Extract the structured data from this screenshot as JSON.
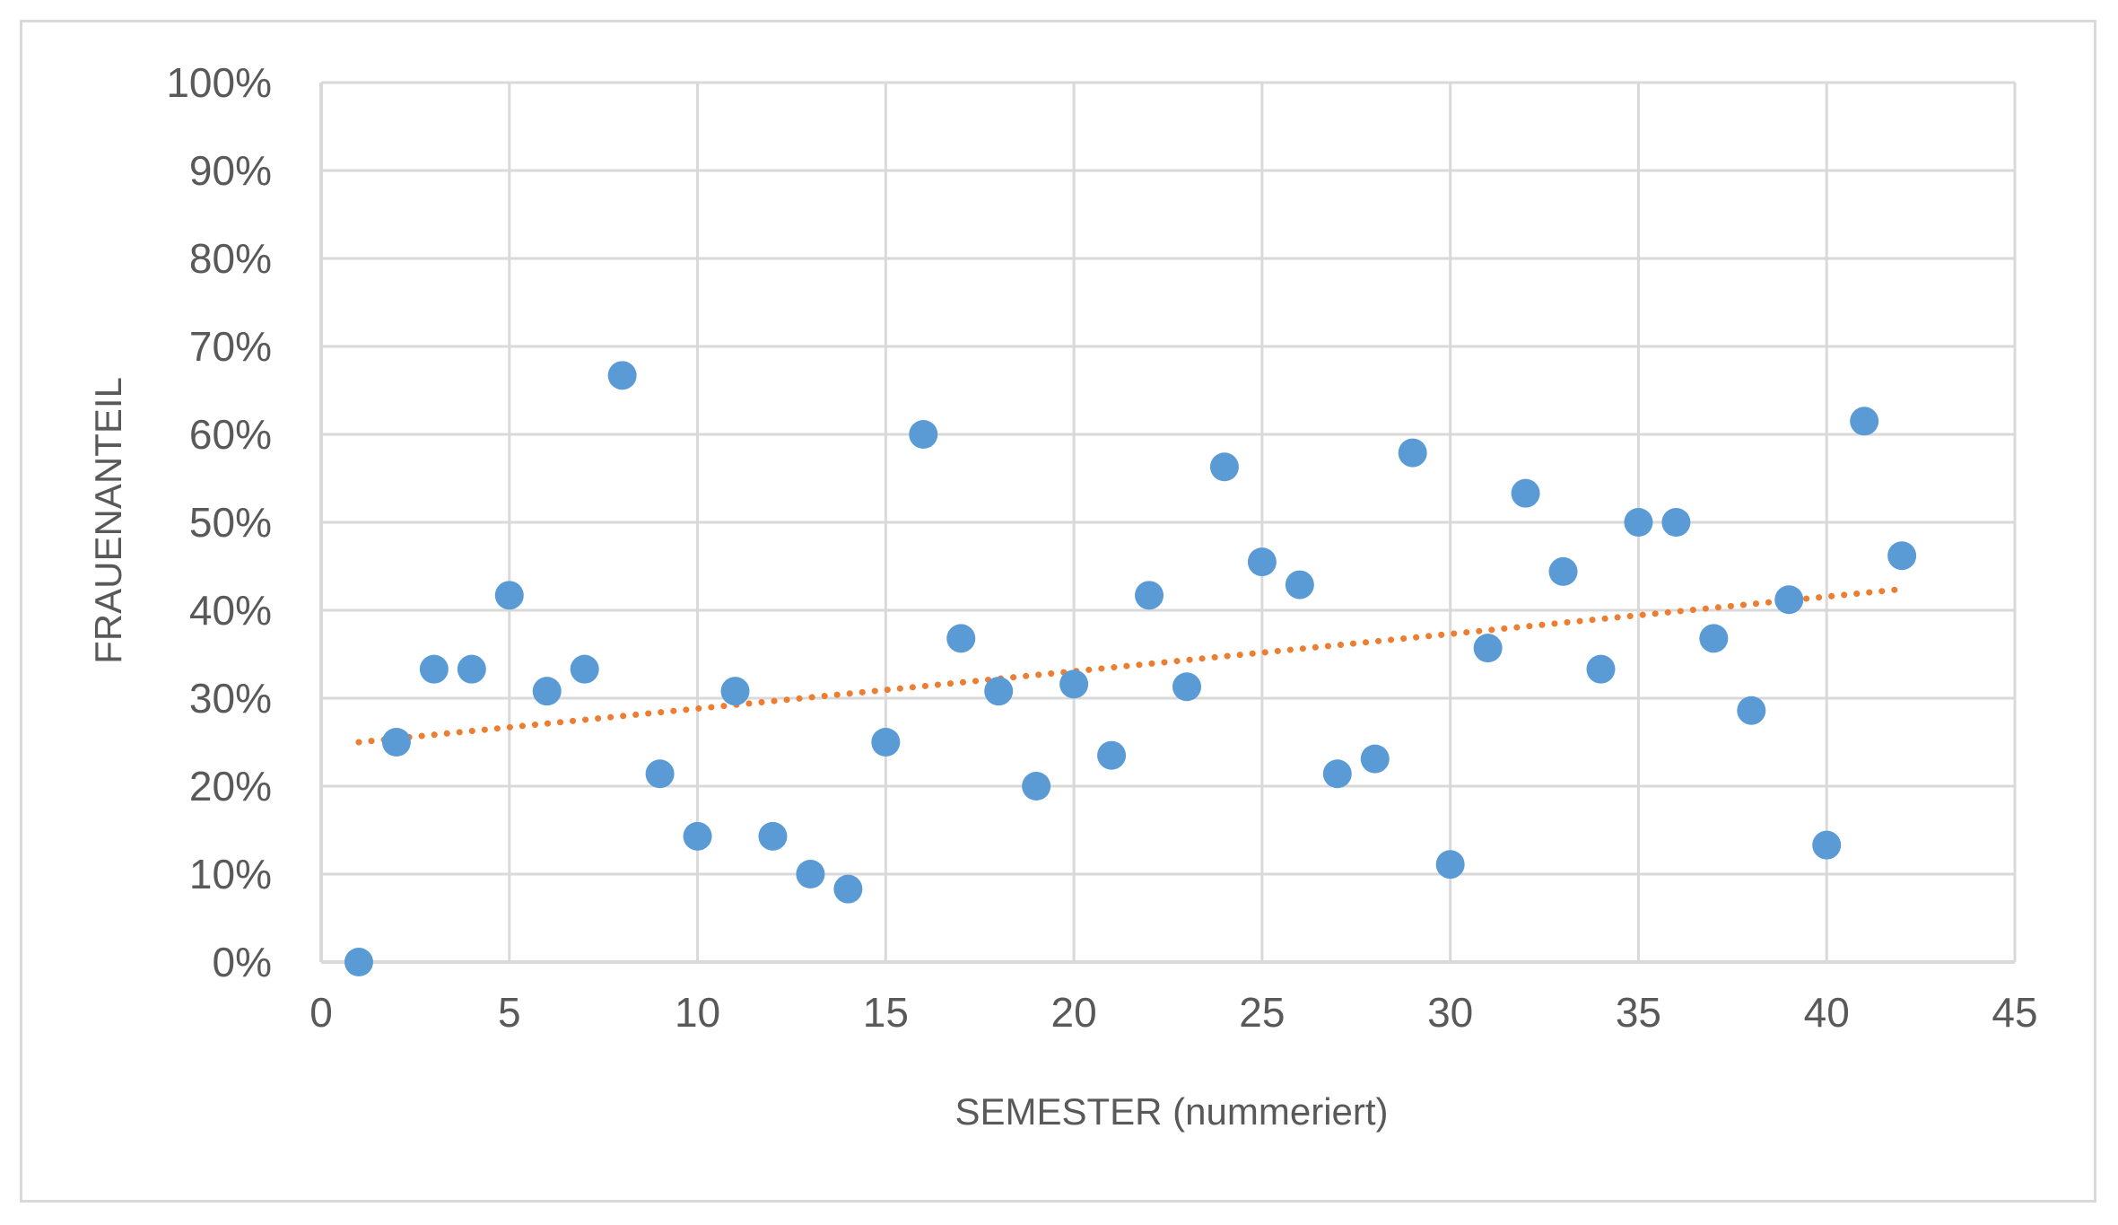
{
  "chart_data": {
    "type": "scatter",
    "title": "",
    "xlabel": "SEMESTER (nummeriert)",
    "ylabel": "FRAUENANTEIL",
    "xlim": [
      0,
      45
    ],
    "ylim": [
      0,
      100
    ],
    "x_ticks": [
      "0",
      "5",
      "10",
      "15",
      "20",
      "25",
      "30",
      "35",
      "40",
      "45"
    ],
    "y_ticks": [
      "0%",
      "10%",
      "20%",
      "30%",
      "40%",
      "50%",
      "60%",
      "70%",
      "80%",
      "90%",
      "100%"
    ],
    "grid": true,
    "legend": "none",
    "series": [
      {
        "color": "#5b9bd5",
        "x": [
          1,
          2,
          3,
          4,
          5,
          6,
          7,
          8,
          9,
          10,
          11,
          12,
          13,
          14,
          15,
          16,
          17,
          18,
          19,
          20,
          21,
          22,
          23,
          24,
          25,
          26,
          27,
          28,
          29,
          30,
          31,
          32,
          33,
          34,
          35,
          36,
          37,
          38,
          39,
          40,
          41,
          42
        ],
        "y": [
          0,
          25,
          33.3,
          33.3,
          41.7,
          30.8,
          33.3,
          66.7,
          21.4,
          14.3,
          30.8,
          14.3,
          10,
          8.3,
          25,
          60,
          36.8,
          30.8,
          20,
          31.6,
          23.5,
          41.7,
          31.3,
          56.3,
          45.5,
          42.9,
          21.4,
          23.1,
          57.9,
          11.1,
          35.7,
          53.3,
          44.4,
          33.3,
          50,
          50,
          36.8,
          28.6,
          41.2,
          13.3,
          61.5,
          46.2
        ]
      }
    ],
    "trendline": {
      "type": "linear",
      "color": "#ed7d31",
      "style": "dotted",
      "x": [
        1,
        42
      ],
      "y": [
        25.0,
        42.4
      ]
    }
  }
}
